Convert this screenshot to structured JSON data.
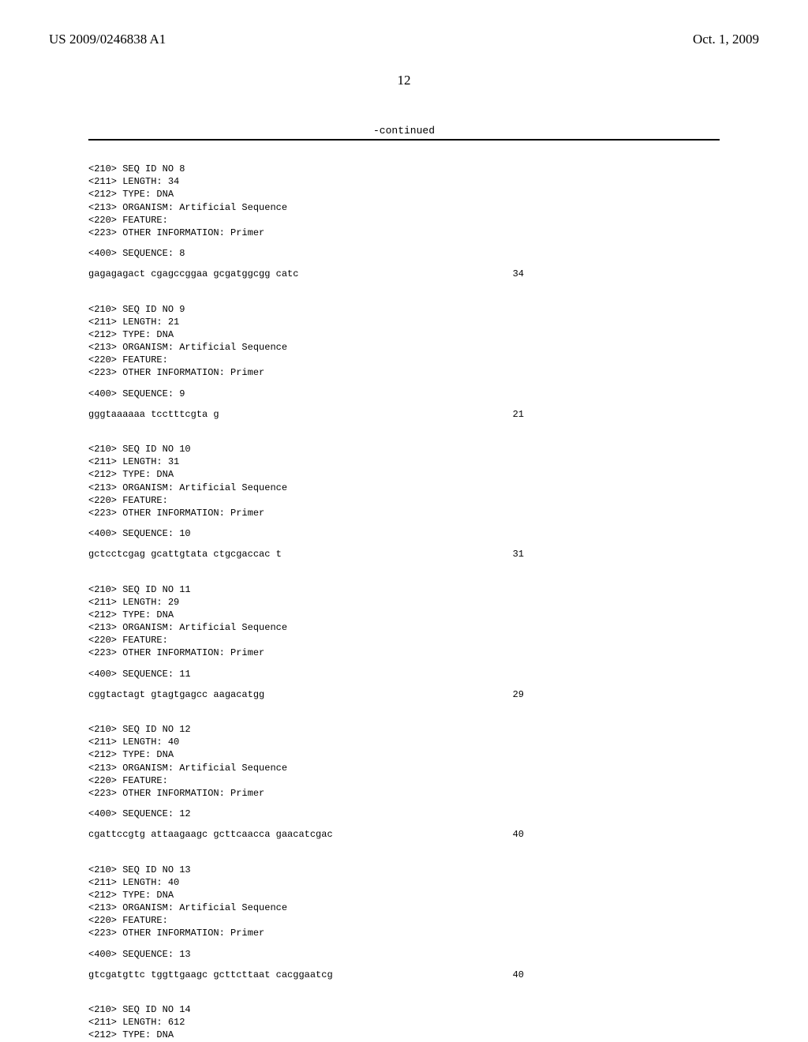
{
  "header": {
    "pub_number": "US 2009/0246838 A1",
    "pub_date": "Oct. 1, 2009"
  },
  "page_number": "12",
  "continued_label": "-continued",
  "sequences": [
    {
      "id": "8",
      "length": "34",
      "type": "DNA",
      "organism": "Artificial Sequence",
      "feature": "",
      "other_info": "Primer",
      "seq_label": "<400> SEQUENCE: 8",
      "seq_text": "gagagagact cgagccggaa gcgatggcgg catc",
      "seq_len": "34"
    },
    {
      "id": "9",
      "length": "21",
      "type": "DNA",
      "organism": "Artificial Sequence",
      "feature": "",
      "other_info": "Primer",
      "seq_label": "<400> SEQUENCE: 9",
      "seq_text": "gggtaaaaaa tcctttcgta g",
      "seq_len": "21"
    },
    {
      "id": "10",
      "length": "31",
      "type": "DNA",
      "organism": "Artificial Sequence",
      "feature": "",
      "other_info": "Primer",
      "seq_label": "<400> SEQUENCE: 10",
      "seq_text": "gctcctcgag gcattgtata ctgcgaccac t",
      "seq_len": "31"
    },
    {
      "id": "11",
      "length": "29",
      "type": "DNA",
      "organism": "Artificial Sequence",
      "feature": "",
      "other_info": "Primer",
      "seq_label": "<400> SEQUENCE: 11",
      "seq_text": "cggtactagt gtagtgagcc aagacatgg",
      "seq_len": "29"
    },
    {
      "id": "12",
      "length": "40",
      "type": "DNA",
      "organism": "Artificial Sequence",
      "feature": "",
      "other_info": "Primer",
      "seq_label": "<400> SEQUENCE: 12",
      "seq_text": "cgattccgtg attaagaagc gcttcaacca gaacatcgac",
      "seq_len": "40"
    },
    {
      "id": "13",
      "length": "40",
      "type": "DNA",
      "organism": "Artificial Sequence",
      "feature": "",
      "other_info": "Primer",
      "seq_label": "<400> SEQUENCE: 13",
      "seq_text": "gtcgatgttc tggttgaagc gcttcttaat cacggaatcg",
      "seq_len": "40"
    }
  ],
  "final_block": {
    "id": "14",
    "length": "612",
    "type": "DNA"
  },
  "label_prefixes": {
    "seq_id": "<210> SEQ ID NO ",
    "length": "<211> LENGTH: ",
    "type": "<212> TYPE: ",
    "organism": "<213> ORGANISM: ",
    "feature": "<220> FEATURE:",
    "other_info": "<223> OTHER INFORMATION: "
  }
}
